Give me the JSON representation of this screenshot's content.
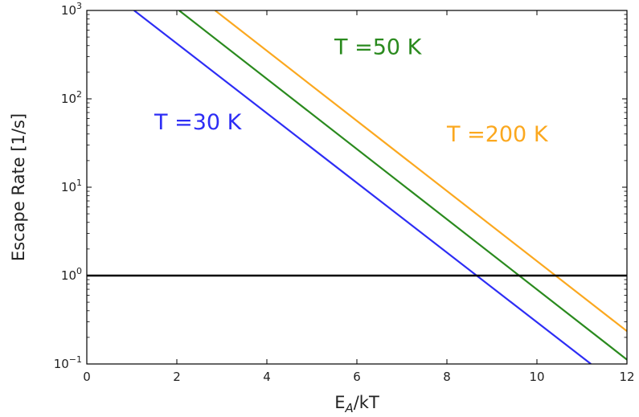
{
  "chart_data": {
    "type": "line",
    "title": "",
    "xlabel": {
      "main": "E",
      "sub": "A",
      "tail": "/kT"
    },
    "ylabel": "Escape Rate [1/s]",
    "xlim": [
      0,
      12
    ],
    "ylim": [
      0.1,
      1000
    ],
    "yscale": "log",
    "x_ticks": [
      0,
      2,
      4,
      6,
      8,
      10,
      12
    ],
    "x_tick_labels": [
      "0",
      "2",
      "4",
      "6",
      "8",
      "10",
      "12"
    ],
    "y_ticks": [
      {
        "value": 0.1,
        "base": "10",
        "exp": "−1"
      },
      {
        "value": 1,
        "base": "10",
        "exp": "0"
      },
      {
        "value": 10,
        "base": "10",
        "exp": "1"
      },
      {
        "value": 100,
        "base": "10",
        "exp": "2"
      },
      {
        "value": 1000,
        "base": "10",
        "exp": "3"
      }
    ],
    "grid": false,
    "series": [
      {
        "label": "T =30 K",
        "color": "#2d2df5",
        "points": [
          [
            1.05,
            1000
          ],
          [
            11.2,
            0.1
          ]
        ],
        "annotation_at": [
          1.5,
          45
        ]
      },
      {
        "label": "T =50 K",
        "color": "#2a8a1e",
        "points": [
          [
            2.05,
            1000
          ],
          [
            12.0,
            0.112
          ]
        ],
        "annotation_at": [
          5.5,
          320
        ]
      },
      {
        "label": "T =200 K",
        "color": "#fba81f",
        "points": [
          [
            2.85,
            1000
          ],
          [
            12.0,
            0.235
          ]
        ],
        "annotation_at": [
          8.0,
          33
        ]
      }
    ],
    "reference_lines": [
      {
        "axis": "y",
        "value": 1,
        "color": "#000000"
      }
    ]
  }
}
